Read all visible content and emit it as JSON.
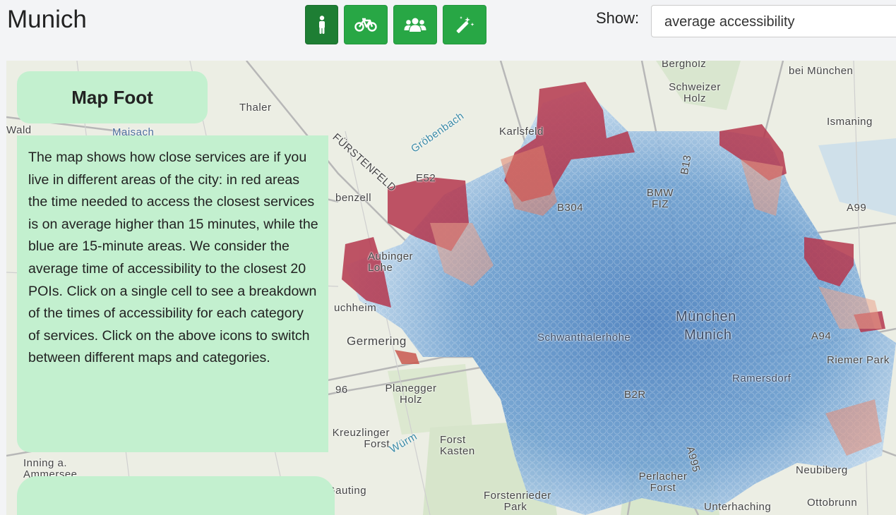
{
  "header": {
    "city": "Munich",
    "show_label": "Show:",
    "show_value": "average accessibility"
  },
  "modes": [
    {
      "name": "walk",
      "icon": "person-walking-icon",
      "active": true
    },
    {
      "name": "bike",
      "icon": "bicycle-icon",
      "active": false
    },
    {
      "name": "groups",
      "icon": "users-icon",
      "active": false
    },
    {
      "name": "magic",
      "icon": "magic-wand-icon",
      "active": false
    }
  ],
  "panel": {
    "title": "Map Foot",
    "text": "The map shows how close services are if you live in different areas of the city: in red areas the time needed to access the closest services is on average higher than 15 minutes, while the blue are 15-minute areas. We consider the average time of accessibility to the closest 20 POIs. Click on a single cell to see a breakdown of the times of accessibility for each category of services. Click on the above icons to switch between different maps and categories."
  },
  "map_labels": {
    "thaler": "Thaler",
    "wald": "Wald",
    "maisach": "Maisach",
    "furstenfeld": "FÜRSTENFELD",
    "grobenbach": "Gröbenbach",
    "karlsfeld": "Karlsfeld",
    "bergholz": "Bergholz",
    "schweizer_holz": "Schweizer Holz",
    "bei_munchen": "bei München",
    "ismaning": "Ismaning",
    "e52": "E52",
    "benzell": "benzell",
    "bmw_fiz": "BMW FIZ",
    "b304": "B304",
    "b13": "B13",
    "a99": "A99",
    "aubinger_lohe": "Aubinger Lohe",
    "uchheim": "uchheim",
    "munchen": "München",
    "munich": "Munich",
    "schwanthalerhohe": "Schwanthalerhöhe",
    "a94": "A94",
    "germering": "Germering",
    "riemer_park": "Riemer Park",
    "ramersdorf": "Ramersdorf",
    "b2r": "B2R",
    "planegger_holz": "Planegger Holz",
    "a96": "96",
    "auzlinger_forst": "Kreuzlinger Forst",
    "wurm": "Würm",
    "forst_kasten": "Forst Kasten",
    "inning": "Inning a. Ammersee",
    "gauting": "Gauting",
    "forstenrieder_park": "Forstenrieder Park",
    "perlacher_forst": "Perlacher Forst",
    "a995": "A995",
    "unterhaching": "Unterhaching",
    "ottobrunn": "Ottobrunn",
    "neubiberg": "Neubiberg"
  },
  "colors": {
    "button": "#28a745",
    "button_active": "#1e7e34",
    "panel": "#c3f0cf",
    "low_time": "#4a7fbf",
    "high_time": "#b5374e"
  }
}
